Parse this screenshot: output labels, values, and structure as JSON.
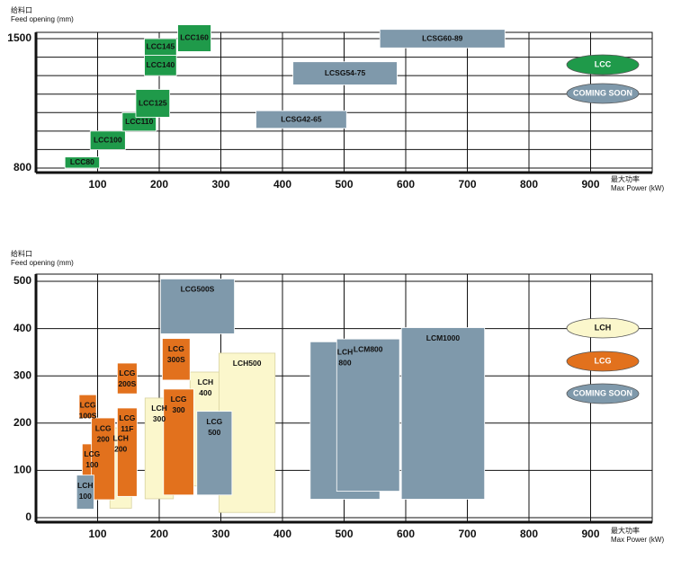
{
  "chart_data": [
    {
      "type": "range",
      "y_title": [
        "给料口",
        "Feed opening (mm)"
      ],
      "x_title": [
        "最大功率",
        "Max Power (kW)"
      ],
      "xlim": [
        0,
        1000
      ],
      "xticks": [
        100,
        200,
        300,
        400,
        500,
        600,
        700,
        800,
        900
      ],
      "ylim": [
        800,
        1500
      ],
      "yticks": [
        800,
        1500
      ],
      "yminor": [
        900,
        1000,
        1100,
        1200,
        1300,
        1400
      ],
      "grid": true,
      "series": [
        {
          "name": "LCC",
          "color": "#1f9a4a",
          "items": [
            {
              "label": [
                "LCC80"
              ],
              "x": [
                47,
                103
              ],
              "y": [
                800,
                860
              ]
            },
            {
              "label": [
                "LCC100"
              ],
              "x": [
                88,
                145
              ],
              "y": [
                900,
                1000
              ]
            },
            {
              "label": [
                "LCC110"
              ],
              "x": [
                140,
                195
              ],
              "y": [
                1000,
                1100
              ]
            },
            {
              "label": [
                "LCC125"
              ],
              "x": [
                162,
                217
              ],
              "y": [
                1075,
                1225
              ]
            },
            {
              "label": [
                "LCC140"
              ],
              "x": [
                176,
                228
              ],
              "y": [
                1300,
                1410
              ]
            },
            {
              "label": [
                "LCC145"
              ],
              "x": [
                176,
                228
              ],
              "y": [
                1410,
                1500
              ]
            },
            {
              "label": [
                "LCC160"
              ],
              "x": [
                230,
                284
              ],
              "y": [
                1430,
                1575
              ]
            }
          ]
        },
        {
          "name": "COMING SOON",
          "color": "#7f99ab",
          "items": [
            {
              "label": [
                "LCSG42-65"
              ],
              "x": [
                357,
                504
              ],
              "y": [
                1015,
                1110
              ]
            },
            {
              "label": [
                "LCSG54-75"
              ],
              "x": [
                417,
                586
              ],
              "y": [
                1250,
                1375
              ]
            },
            {
              "label": [
                "LCSG60-89"
              ],
              "x": [
                558,
                761
              ],
              "y": [
                1450,
                1550
              ]
            }
          ]
        }
      ]
    },
    {
      "type": "range",
      "y_title": [
        "给料口",
        "Feed opening (mm)"
      ],
      "x_title": [
        "最大功率",
        "Max Power (kW)"
      ],
      "xlim": [
        0,
        1000
      ],
      "xticks": [
        100,
        200,
        300,
        400,
        500,
        600,
        700,
        800,
        900
      ],
      "ylim": [
        0,
        500
      ],
      "yticks": [
        0,
        100,
        200,
        300,
        400,
        500
      ],
      "grid": true,
      "series": [
        {
          "name": "LCH",
          "color": "#fbf7cc",
          "items": [
            {
              "label": [
                "LCH",
                "200"
              ],
              "x": [
                120,
                155
              ],
              "y": [
                20,
                190
              ]
            },
            {
              "label": [
                "LCH",
                "300"
              ],
              "x": [
                177,
                223
              ],
              "y": [
                40,
                253
              ]
            },
            {
              "label": [
                "LCH",
                "400"
              ],
              "x": [
                250,
                300
              ],
              "y": [
                67,
                308
              ]
            },
            {
              "label": [
                "LCH500"
              ],
              "x": [
                297,
                388
              ],
              "y": [
                11,
                348
              ]
            }
          ]
        },
        {
          "name": "LCG",
          "color": "#e2711d",
          "items": [
            {
              "label": [
                "LCG",
                "100S"
              ],
              "x": [
                70,
                98
              ],
              "y": [
                210,
                260
              ]
            },
            {
              "label": [
                "LCG",
                "100"
              ],
              "x": [
                75,
                107
              ],
              "y": [
                38,
                156
              ]
            },
            {
              "label": [
                "LCG",
                "200"
              ],
              "x": [
                90,
                128
              ],
              "y": [
                38,
                211
              ]
            },
            {
              "label": [
                "LCG",
                "11F"
              ],
              "x": [
                132,
                164
              ],
              "y": [
                45,
                232
              ]
            },
            {
              "label": [
                "LCG",
                "200S"
              ],
              "x": [
                132,
                164
              ],
              "y": [
                262,
                327
              ]
            },
            {
              "label": [
                "LCG",
                "300S"
              ],
              "x": [
                205,
                250
              ],
              "y": [
                291,
                379
              ]
            },
            {
              "label": [
                "LCG",
                "300"
              ],
              "x": [
                207,
                256
              ],
              "y": [
                48,
                272
              ]
            }
          ]
        },
        {
          "name": "COMING SOON",
          "color": "#7f99ab",
          "items": [
            {
              "label": [
                "LCH",
                "100"
              ],
              "x": [
                66,
                94
              ],
              "y": [
                18,
                90
              ]
            },
            {
              "label": [
                "LCG500S"
              ],
              "x": [
                202,
                322
              ],
              "y": [
                389,
                505
              ]
            },
            {
              "label": [
                "LCG",
                "500"
              ],
              "x": [
                261,
                318
              ],
              "y": [
                48,
                225
              ]
            },
            {
              "label": [
                "LCH",
                "800"
              ],
              "x": [
                445,
                558
              ],
              "y": [
                39,
                372
              ]
            },
            {
              "label": [
                "LCM800"
              ],
              "x": [
                488,
                590
              ],
              "y": [
                56,
                378
              ]
            },
            {
              "label": [
                "LCM1000"
              ],
              "x": [
                593,
                728
              ],
              "y": [
                39,
                402
              ]
            }
          ]
        }
      ]
    }
  ]
}
